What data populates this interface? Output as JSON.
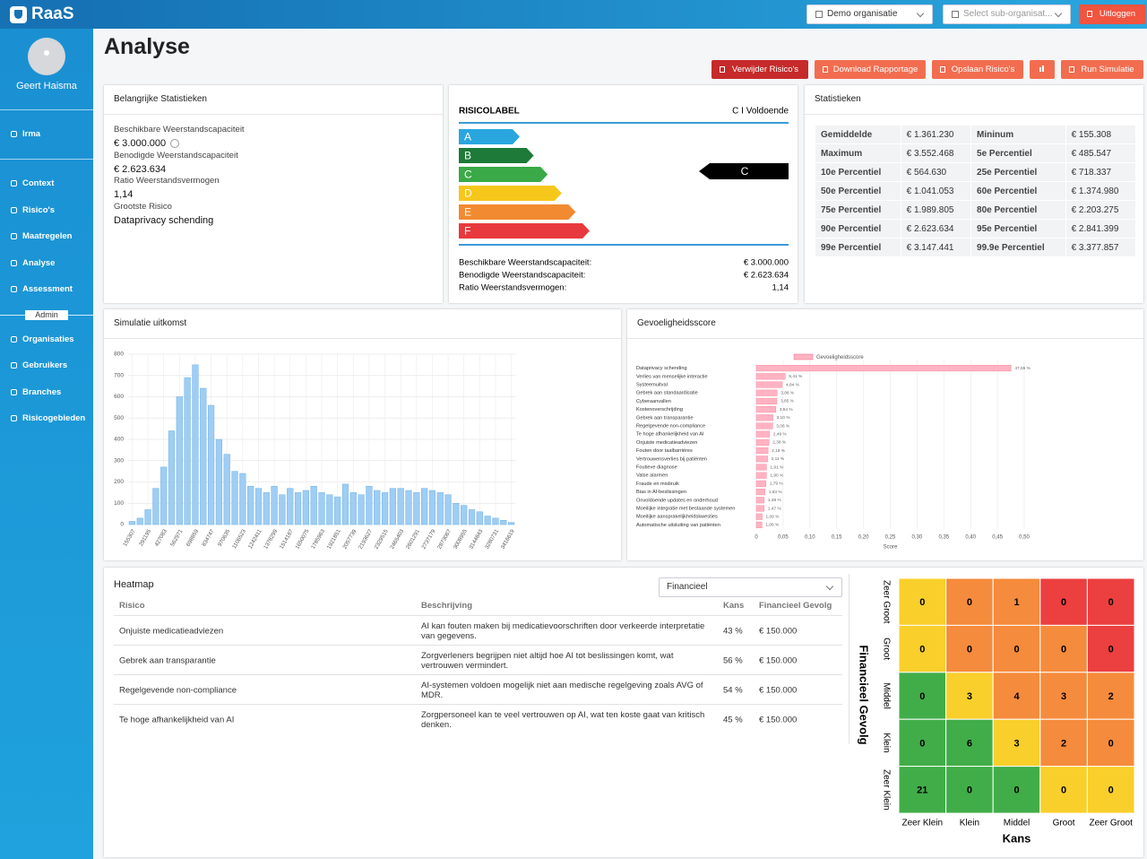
{
  "sidebar": {
    "logo": "RaaS",
    "user": "Geert Haisma",
    "menu_top": [
      "Irma"
    ],
    "menu": [
      "Context",
      "Risico's",
      "Maatregelen",
      "Analyse",
      "Assessment"
    ],
    "admin_label": "Admin",
    "admin_menu": [
      "Organisaties",
      "Gebruikers",
      "Branches",
      "Risicogebieden"
    ]
  },
  "topbar": {
    "organisation": "Demo organisatie",
    "sub_organisation": "Select sub-organisat...",
    "logout": "Uitloggen"
  },
  "page_title": "Analyse",
  "actions": [
    "Verwijder Risico's",
    "Download Rapportage",
    "Opslaan Risico's",
    "Run Simulatie"
  ],
  "key_stats": {
    "title": "Belangrijke Statistieken",
    "items": [
      {
        "label": "Beschikbare Weerstandscapaciteit",
        "value": "€ 3.000.000"
      },
      {
        "label": "Benodigde Weerstandscapaciteit",
        "value": "€ 2.623.634"
      },
      {
        "label": "Ratio Weerstandsvermogen",
        "value": "1,14"
      },
      {
        "label": "Grootste Risico",
        "value": "Dataprivacy schending"
      }
    ]
  },
  "risk_label": {
    "title": "RISICOLABEL",
    "rating": "C I Voldoende",
    "labels": [
      {
        "label": "A",
        "color": "#2aa6de"
      },
      {
        "label": "B",
        "color": "#1d7a38"
      },
      {
        "label": "C",
        "color": "#3aa947"
      },
      {
        "label": "D",
        "color": "#f6c71b"
      },
      {
        "label": "E",
        "color": "#f28a31"
      },
      {
        "label": "F",
        "color": "#e83a3e"
      }
    ],
    "indicator": "C",
    "rows": [
      {
        "label": "Beschikbare Weerstandscapaciteit:",
        "value": "€ 3.000.000"
      },
      {
        "label": "Benodigde Weerstandscapaciteit:",
        "value": "€ 2.623.634"
      },
      {
        "label": "Ratio Weerstandsvermogen:",
        "value": "1,14"
      }
    ]
  },
  "statistics": {
    "title": "Statistieken",
    "rows": [
      [
        "Gemiddelde",
        "€ 1.361.230",
        "Mininum",
        "€ 155.308"
      ],
      [
        "Maximum",
        "€ 3.552.468",
        "5e Percentiel",
        "€ 485.547"
      ],
      [
        "10e Percentiel",
        "€ 564.630",
        "25e Percentiel",
        "€ 718.337"
      ],
      [
        "50e Percentiel",
        "€ 1.041.053",
        "60e Percentiel",
        "€ 1.374.980"
      ],
      [
        "75e Percentiel",
        "€ 1.989.805",
        "80e Percentiel",
        "€ 2.203.275"
      ],
      [
        "90e Percentiel",
        "€ 2.623.634",
        "95e Percentiel",
        "€ 2.841.399"
      ],
      [
        "99e Percentiel",
        "€ 3.147.441",
        "99.9e Percentiel",
        "€ 3.377.857"
      ]
    ]
  },
  "heatmap_table": {
    "title": "Heatmap",
    "filter": "Financieel",
    "columns": [
      "Risico",
      "Beschrijving",
      "Kans",
      "Financieel Gevolg"
    ],
    "rows": [
      [
        "Onjuiste medicatieadviezen",
        "AI kan fouten maken bij medicatievoorschriften door verkeerde interpretatie van gegevens.",
        "43 %",
        "€ 150.000"
      ],
      [
        "Gebrek aan transparantie",
        "Zorgverleners begrijpen niet altijd hoe AI tot beslissingen komt, wat vertrouwen vermindert.",
        "56 %",
        "€ 150.000"
      ],
      [
        "Regelgevende non-compliance",
        "AI-systemen voldoen mogelijk niet aan medische regelgeving zoals AVG of MDR.",
        "54 %",
        "€ 150.000"
      ],
      [
        "Te hoge afhankelijkheid van AI",
        "Zorgpersoneel kan te veel vertrouwen op AI, wat ten koste gaat van kritisch denken.",
        "45 %",
        "€ 150.000"
      ]
    ]
  },
  "chart_data": [
    {
      "type": "bar",
      "title": "Simulatie uitkomst",
      "color": "#9fcdf3",
      "grid": true,
      "categories": [
        155307,
        null,
        291195,
        null,
        427083,
        null,
        562971,
        null,
        698859,
        null,
        834747,
        null,
        970635,
        null,
        1106523,
        null,
        1242411,
        null,
        1378299,
        null,
        1514187,
        null,
        1650075,
        null,
        1785963,
        null,
        1921851,
        null,
        2057739,
        null,
        2193627,
        null,
        2329515,
        null,
        2465403,
        null,
        2601291,
        null,
        2737179,
        null,
        2873067,
        null,
        3008955,
        null,
        3144843,
        null,
        3280731,
        null,
        3416619
      ],
      "values": [
        15,
        30,
        70,
        170,
        270,
        440,
        600,
        690,
        750,
        640,
        560,
        400,
        330,
        250,
        240,
        180,
        170,
        150,
        180,
        140,
        170,
        150,
        160,
        180,
        150,
        140,
        130,
        190,
        150,
        140,
        180,
        160,
        150,
        170,
        170,
        160,
        150,
        170,
        160,
        150,
        140,
        100,
        90,
        70,
        60,
        40,
        30,
        20,
        10
      ],
      "ylim": [
        0,
        800
      ],
      "yticks": [
        0,
        100,
        200,
        300,
        400,
        500,
        600,
        700,
        800
      ]
    },
    {
      "type": "hbar",
      "title": "Gevoeligheidsscore",
      "xlabel": "Score",
      "grid": true,
      "legend": "top",
      "categories": [
        "Dataprivacy schending",
        "Verlies van menselijke interactie",
        "Systeemuitval",
        "Gebrek aan standaardisatie",
        "Cyberaanvallen",
        "Kostenoverschrijding",
        "Gebrek aan transparantie",
        "Regelgevende non-compliance",
        "Te hoge afhankelijkheid van AI",
        "Onjuiste medicatieadviezen",
        "Fouten door taalbarrières",
        "Vertrouwensverlies bij patiënten",
        "Foutieve diagnose",
        "Valse alarmen",
        "Fraude en misbruik",
        "Bias in AI-beslissingen",
        "Onvoldoende updates en onderhoud",
        "Moeilijke integratie met bestaande systemen",
        "Moeilijke aansprakelijkheidskwesties",
        "Automatische uitsluiting van patiënten"
      ],
      "series": [
        {
          "name": "Gevoeligheidsscore",
          "color": "#ffb3c2",
          "values": [
            0.4755,
            0.0541,
            0.0484,
            0.0388,
            0.0385,
            0.0364,
            0.031,
            0.0306,
            0.0249,
            0.0238,
            0.0219,
            0.0211,
            0.0191,
            0.019,
            0.0179,
            0.0163,
            0.0148,
            0.0147,
            0.0109,
            0.0106
          ],
          "value_labels": [
            "47,55 %",
            "5,41 %",
            "4,84 %",
            "3,88 %",
            "3,85 %",
            "3,64 %",
            "3,10 %",
            "3,06 %",
            "2,49 %",
            "2,38 %",
            "2,19 %",
            "2,11 %",
            "1,91 %",
            "1,90 %",
            "1,79 %",
            "1,63 %",
            "1,48 %",
            "1,47 %",
            "1,09 %",
            "1,06 %"
          ]
        }
      ],
      "xlim": [
        0,
        0.5
      ],
      "xticks": [
        0,
        {
          "value": 0.05,
          "label": "0,05"
        },
        {
          "value": 0.1,
          "label": "0,10"
        },
        {
          "value": 0.15,
          "label": "0,15"
        },
        {
          "value": 0.2,
          "label": "0,20"
        },
        {
          "value": 0.25,
          "label": "0,25"
        },
        {
          "value": 0.3,
          "label": "0,30"
        },
        {
          "value": 0.35,
          "label": "0,35"
        },
        {
          "value": 0.4,
          "label": "0,40"
        },
        {
          "value": 0.45,
          "label": "0,45"
        },
        {
          "value": 0.5,
          "label": "0,50"
        }
      ]
    },
    {
      "type": "heatmap",
      "xlabel": "Kans",
      "ylabel": "Financieel Gevolg",
      "x": [
        "Zeer Klein",
        "Klein",
        "Middel",
        "Groot",
        "Zeer Groot"
      ],
      "y": [
        "Zeer Groot",
        "Groot",
        "Middel",
        "Klein",
        "Zeer Klein"
      ],
      "values": [
        [
          0,
          0,
          1,
          0,
          0
        ],
        [
          0,
          0,
          0,
          0,
          0
        ],
        [
          0,
          3,
          4,
          3,
          2
        ],
        [
          0,
          6,
          3,
          2,
          0
        ],
        [
          21,
          0,
          0,
          0,
          0
        ]
      ],
      "colors": [
        [
          "#f9cf2b",
          "#f58b3c",
          "#f58b3c",
          "#ec3f3f",
          "#ec3f3f"
        ],
        [
          "#f9cf2b",
          "#f58b3c",
          "#f58b3c",
          "#f58b3c",
          "#ec3f3f"
        ],
        [
          "#41ad49",
          "#f9cf2b",
          "#f58b3c",
          "#f58b3c",
          "#f58b3c"
        ],
        [
          "#41ad49",
          "#41ad49",
          "#f9cf2b",
          "#f58b3c",
          "#f58b3c"
        ],
        [
          "#41ad49",
          "#41ad49",
          "#41ad49",
          "#f9cf2b",
          "#f9cf2b"
        ]
      ]
    }
  ]
}
